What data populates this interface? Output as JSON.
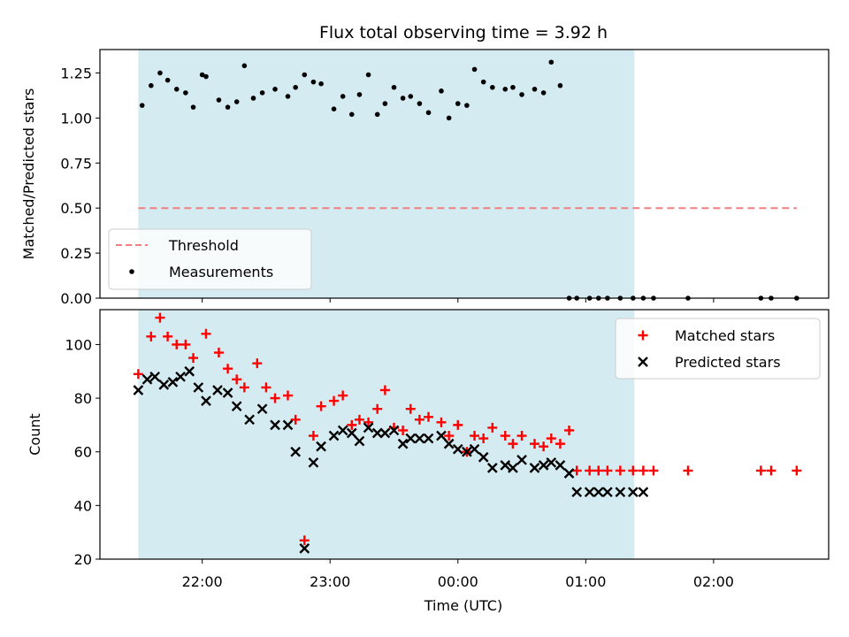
{
  "chart_data": {
    "type": "scatter",
    "title": "Flux total observing time = 3.92 h",
    "xlabel": "Time (UTC)",
    "x_ticks": [
      {
        "value": 22,
        "label": "22:00"
      },
      {
        "value": 23,
        "label": "23:00"
      },
      {
        "value": 24,
        "label": "00:00"
      },
      {
        "value": 25,
        "label": "01:00"
      },
      {
        "value": 26,
        "label": "02:00"
      }
    ],
    "xlim": [
      21.2,
      26.9
    ],
    "observing_window": {
      "start": 21.5,
      "end": 25.38,
      "color": "#d4ebf1"
    },
    "panels": [
      {
        "id": "ratio",
        "ylabel": "Matched/Predicted stars",
        "ylim": [
          0,
          1.38
        ],
        "y_ticks": [
          "0.00",
          "0.25",
          "0.50",
          "0.75",
          "1.00",
          "1.25"
        ],
        "legend_position": "lower-left",
        "series": [
          {
            "name": "Threshold",
            "kind": "dashed-line",
            "color": "#f08080",
            "x": [
              21.5,
              26.65
            ],
            "y": [
              0.5,
              0.5
            ]
          },
          {
            "name": "Measurements",
            "kind": "dot",
            "color": "#000000",
            "x": [
              21.53,
              21.6,
              21.67,
              21.73,
              21.8,
              21.87,
              21.93,
              22.0,
              22.03,
              22.13,
              22.2,
              22.27,
              22.33,
              22.4,
              22.47,
              22.57,
              22.67,
              22.73,
              22.8,
              22.87,
              22.93,
              23.03,
              23.1,
              23.17,
              23.23,
              23.3,
              23.37,
              23.43,
              23.5,
              23.57,
              23.63,
              23.7,
              23.77,
              23.87,
              23.93,
              24.0,
              24.07,
              24.13,
              24.2,
              24.27,
              24.37,
              24.43,
              24.5,
              24.6,
              24.67,
              24.73,
              24.8,
              24.87,
              24.93,
              25.03,
              25.1,
              25.17,
              25.27,
              25.37,
              25.45,
              25.53,
              25.8,
              26.37,
              26.45,
              26.65
            ],
            "y": [
              1.07,
              1.18,
              1.25,
              1.21,
              1.16,
              1.14,
              1.06,
              1.24,
              1.23,
              1.1,
              1.06,
              1.09,
              1.29,
              1.11,
              1.14,
              1.16,
              1.12,
              1.17,
              1.24,
              1.2,
              1.19,
              1.05,
              1.12,
              1.02,
              1.13,
              1.24,
              1.02,
              1.08,
              1.17,
              1.11,
              1.12,
              1.08,
              1.03,
              1.15,
              1.0,
              1.08,
              1.07,
              1.27,
              1.2,
              1.17,
              1.16,
              1.17,
              1.13,
              1.16,
              1.14,
              1.31,
              1.18,
              0.0,
              0.0,
              0.0,
              0.0,
              0.0,
              0.0,
              0.0,
              0.0,
              0.0,
              0.0,
              0.0,
              0.0,
              0.0
            ]
          }
        ]
      },
      {
        "id": "count",
        "ylabel": "Count",
        "ylim": [
          20,
          113
        ],
        "y_ticks": [
          "20",
          "40",
          "60",
          "80",
          "100"
        ],
        "legend_position": "top-right",
        "series": [
          {
            "name": "Matched stars",
            "kind": "plus",
            "color": "#ff0000",
            "x": [
              21.5,
              21.6,
              21.67,
              21.73,
              21.8,
              21.87,
              21.93,
              22.03,
              22.13,
              22.2,
              22.27,
              22.33,
              22.43,
              22.5,
              22.57,
              22.67,
              22.73,
              22.8,
              22.87,
              22.93,
              23.03,
              23.1,
              23.17,
              23.23,
              23.3,
              23.37,
              23.43,
              23.5,
              23.57,
              23.63,
              23.7,
              23.77,
              23.87,
              23.93,
              24.0,
              24.07,
              24.13,
              24.2,
              24.27,
              24.37,
              24.43,
              24.5,
              24.6,
              24.67,
              24.73,
              24.8,
              24.87,
              24.93,
              25.03,
              25.1,
              25.17,
              25.27,
              25.37,
              25.45,
              25.53,
              25.8,
              26.37,
              26.45,
              26.65
            ],
            "y": [
              89,
              103,
              110,
              103,
              100,
              100,
              95,
              104,
              97,
              91,
              87,
              84,
              93,
              84,
              80,
              81,
              72,
              27,
              66,
              77,
              79,
              81,
              70,
              72,
              71,
              76,
              83,
              69,
              68,
              76,
              72,
              73,
              71,
              66,
              70,
              60,
              66,
              65,
              69,
              66,
              63,
              66,
              63,
              62,
              65,
              63,
              68,
              53,
              53,
              53,
              53,
              53,
              53,
              53,
              53,
              53,
              53,
              53,
              53
            ],
            "note_x_alignment": "approximate"
          },
          {
            "name": "Predicted stars",
            "kind": "x",
            "color": "#000000",
            "x": [
              21.5,
              21.57,
              21.63,
              21.7,
              21.77,
              21.83,
              21.9,
              21.97,
              22.03,
              22.12,
              22.2,
              22.27,
              22.37,
              22.47,
              22.57,
              22.67,
              22.73,
              22.8,
              22.87,
              22.93,
              23.03,
              23.1,
              23.17,
              23.23,
              23.3,
              23.37,
              23.43,
              23.5,
              23.57,
              23.63,
              23.7,
              23.77,
              23.87,
              23.93,
              24.0,
              24.07,
              24.13,
              24.2,
              24.27,
              24.37,
              24.43,
              24.5,
              24.6,
              24.67,
              24.73,
              24.8,
              24.87,
              24.93,
              25.03,
              25.1,
              25.17,
              25.27,
              25.37,
              25.45
            ],
            "y": [
              83,
              87,
              88,
              85,
              86,
              88,
              90,
              84,
              79,
              83,
              82,
              77,
              72,
              76,
              70,
              70,
              60,
              24,
              56,
              62,
              66,
              68,
              67,
              64,
              69,
              67,
              67,
              68,
              63,
              65,
              65,
              65,
              66,
              63,
              61,
              60,
              61,
              58,
              54,
              55,
              54,
              57,
              54,
              55,
              56,
              55,
              52,
              45,
              45,
              45,
              45,
              45,
              45,
              45
            ]
          }
        ]
      }
    ]
  }
}
